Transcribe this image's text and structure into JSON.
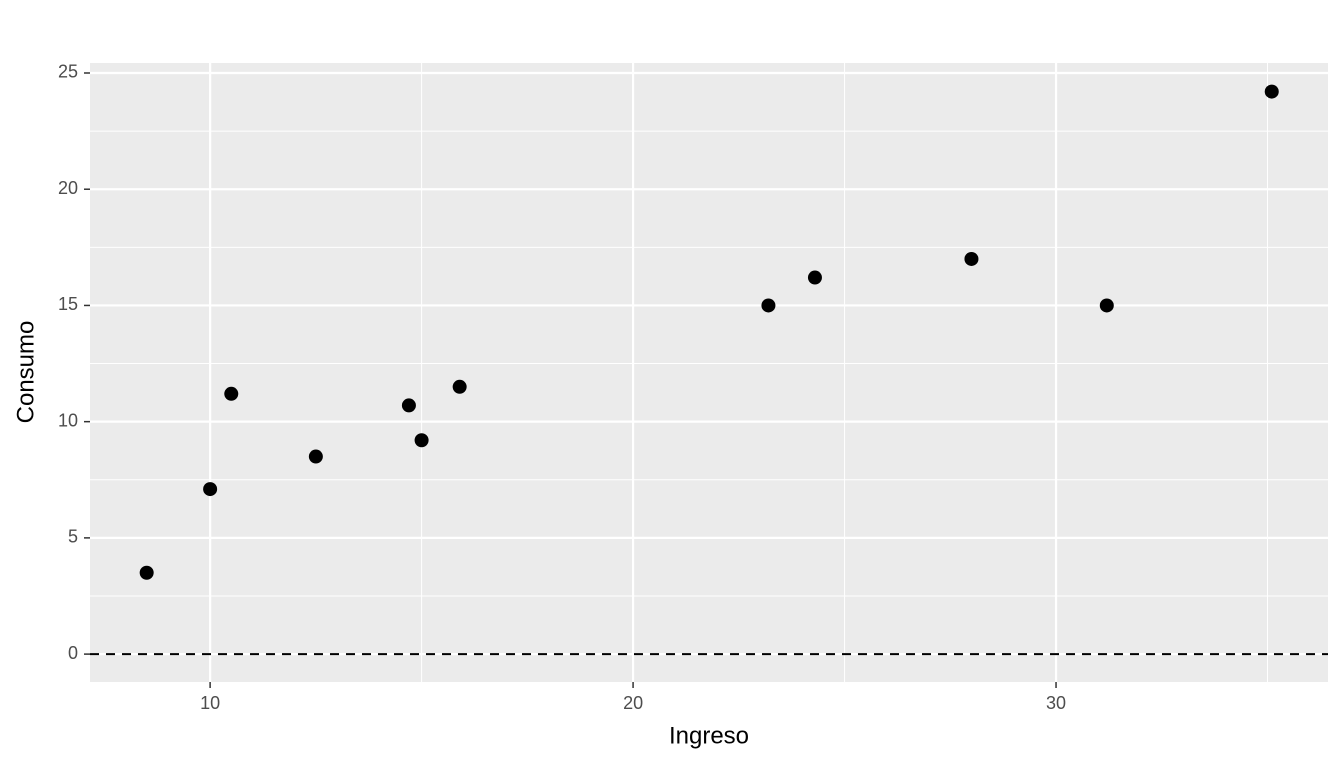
{
  "chart_data": {
    "type": "scatter",
    "x_label": "Ingreso",
    "y_label": "Consumo",
    "x": [
      8.5,
      10,
      10.5,
      12.5,
      14.7,
      15.0,
      15.9,
      23.2,
      24.3,
      28.0,
      31.2,
      35.1
    ],
    "values": [
      3.5,
      7.1,
      11.2,
      8.5,
      10.7,
      9.2,
      11.5,
      15.0,
      16.2,
      17.0,
      15.0,
      24.2
    ],
    "color": "#000000",
    "xlim": [
      7.16,
      36.43
    ],
    "ylim": [
      -1.2,
      25.43
    ],
    "xticks": [
      10,
      20,
      30
    ],
    "yticks": [
      0,
      5,
      10,
      15,
      20,
      25
    ],
    "hline": 0,
    "grid": true
  }
}
